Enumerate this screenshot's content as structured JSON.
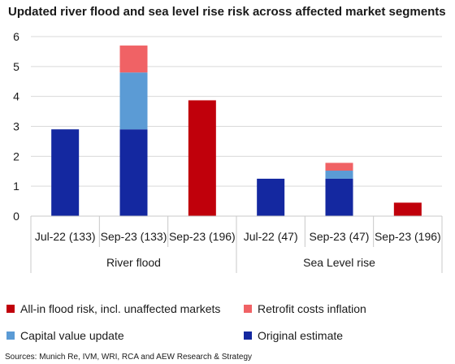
{
  "chart_data": {
    "type": "bar",
    "stacked": true,
    "title": "Updated river flood and sea level rise risk across affected market segments",
    "categories": [
      "Jul-22 (133)",
      "Sep-23 (133)",
      "Sep-23 (196)",
      "Jul-22 (47)",
      "Sep-23 (47)",
      "Sep-23 (196)"
    ],
    "groups": [
      {
        "label": "River flood",
        "categories": [
          0,
          1,
          2
        ]
      },
      {
        "label": "Sea Level rise",
        "categories": [
          3,
          4,
          5
        ]
      }
    ],
    "series": [
      {
        "name": "Original estimate",
        "color": "#1428a0",
        "values": [
          2.9,
          2.9,
          0,
          1.25,
          1.25,
          0
        ]
      },
      {
        "name": "Capital value update",
        "color": "#5b9bd5",
        "values": [
          0,
          1.9,
          0,
          0,
          0.27,
          0
        ]
      },
      {
        "name": "Retrofit costs inflation",
        "color": "#f06265",
        "values": [
          0,
          0.9,
          0,
          0,
          0.26,
          0
        ]
      },
      {
        "name": "All-in flood risk, incl. unaffected markets",
        "color": "#c0000b",
        "values": [
          0,
          0,
          3.87,
          0,
          0,
          0.45
        ]
      }
    ],
    "ylim": [
      0,
      6
    ],
    "yticks": [
      0,
      1,
      2,
      3,
      4,
      5,
      6
    ],
    "grid": true,
    "legend_order": [
      "All-in flood risk, incl. unaffected markets",
      "Retrofit costs inflation",
      "Capital value update",
      "Original estimate"
    ],
    "legend_position": "bottom",
    "source": "Sources: Munich Re, IVM, WRI, RCA and AEW Research & Strategy"
  }
}
